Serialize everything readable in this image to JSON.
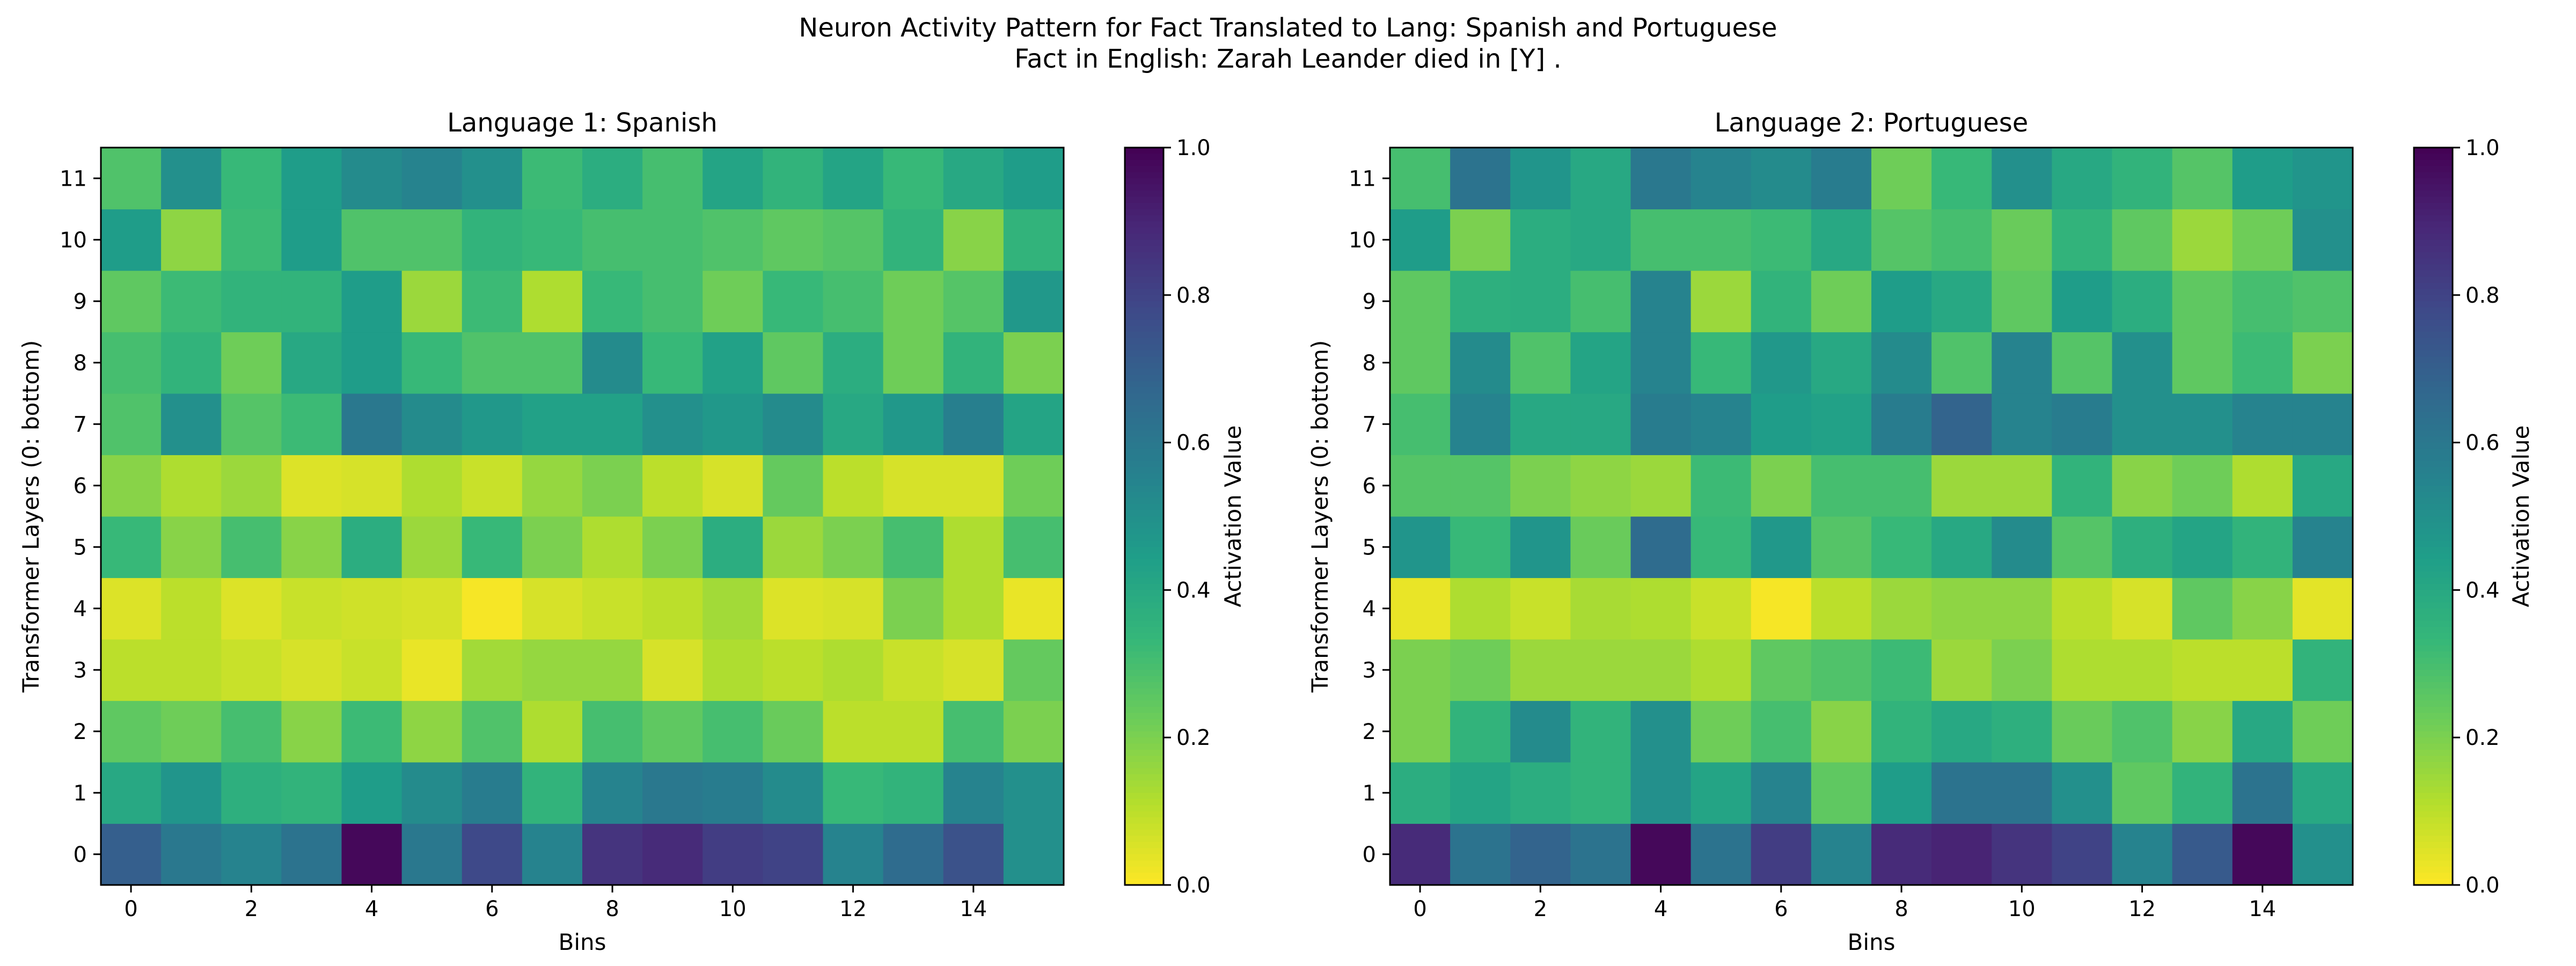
{
  "figure": {
    "title_line1": "Neuron Activity Pattern for Fact Translated to Lang: Spanish and Portuguese",
    "title_line2": "Fact in English: Zarah Leander died in [Y] ."
  },
  "chart_data": [
    {
      "type": "heatmap",
      "title": "Language 1: Spanish",
      "xlabel": "Bins",
      "ylabel": "Transformer Layers (0: bottom)",
      "x_ticks": [
        0,
        2,
        4,
        6,
        8,
        10,
        12,
        14
      ],
      "y_ticks": [
        0,
        1,
        2,
        3,
        4,
        5,
        6,
        7,
        8,
        9,
        10,
        11
      ],
      "n_bins": 16,
      "n_layers": 12,
      "colorbar": {
        "label": "Activation Value",
        "min": 0.0,
        "max": 1.0,
        "ticks": [
          "0.0",
          "0.2",
          "0.4",
          "0.6",
          "0.8",
          "1.0"
        ],
        "colormap": "viridis_r"
      },
      "values": [
        [
          0.7,
          0.6,
          0.55,
          0.62,
          0.98,
          0.6,
          0.78,
          0.55,
          0.85,
          0.88,
          0.82,
          0.8,
          0.55,
          0.65,
          0.75,
          0.5
        ],
        [
          0.4,
          0.48,
          0.37,
          0.35,
          0.45,
          0.52,
          0.58,
          0.35,
          0.55,
          0.6,
          0.58,
          0.52,
          0.33,
          0.35,
          0.55,
          0.5
        ],
        [
          0.25,
          0.22,
          0.3,
          0.18,
          0.32,
          0.17,
          0.28,
          0.12,
          0.3,
          0.25,
          0.3,
          0.23,
          0.1,
          0.1,
          0.3,
          0.2
        ],
        [
          0.1,
          0.1,
          0.08,
          0.06,
          0.08,
          0.03,
          0.14,
          0.16,
          0.16,
          0.06,
          0.12,
          0.1,
          0.12,
          0.08,
          0.06,
          0.24
        ],
        [
          0.05,
          0.1,
          0.05,
          0.08,
          0.07,
          0.06,
          0.01,
          0.06,
          0.08,
          0.1,
          0.14,
          0.05,
          0.06,
          0.2,
          0.12,
          0.03
        ],
        [
          0.33,
          0.18,
          0.3,
          0.18,
          0.38,
          0.15,
          0.33,
          0.2,
          0.12,
          0.2,
          0.38,
          0.15,
          0.2,
          0.3,
          0.12,
          0.3
        ],
        [
          0.18,
          0.12,
          0.15,
          0.05,
          0.06,
          0.12,
          0.08,
          0.16,
          0.2,
          0.1,
          0.06,
          0.24,
          0.1,
          0.06,
          0.06,
          0.22
        ],
        [
          0.28,
          0.5,
          0.27,
          0.32,
          0.6,
          0.52,
          0.47,
          0.43,
          0.43,
          0.5,
          0.47,
          0.52,
          0.4,
          0.47,
          0.57,
          0.42
        ],
        [
          0.3,
          0.35,
          0.22,
          0.4,
          0.45,
          0.33,
          0.28,
          0.28,
          0.52,
          0.33,
          0.43,
          0.25,
          0.38,
          0.22,
          0.35,
          0.2
        ],
        [
          0.25,
          0.32,
          0.35,
          0.35,
          0.45,
          0.15,
          0.32,
          0.12,
          0.33,
          0.3,
          0.22,
          0.33,
          0.3,
          0.22,
          0.27,
          0.47
        ],
        [
          0.45,
          0.17,
          0.32,
          0.45,
          0.28,
          0.28,
          0.35,
          0.33,
          0.3,
          0.3,
          0.28,
          0.25,
          0.27,
          0.35,
          0.18,
          0.35
        ],
        [
          0.28,
          0.5,
          0.33,
          0.45,
          0.52,
          0.55,
          0.5,
          0.32,
          0.38,
          0.3,
          0.42,
          0.35,
          0.42,
          0.33,
          0.4,
          0.45
        ]
      ]
    },
    {
      "type": "heatmap",
      "title": "Language 2: Portuguese",
      "xlabel": "Bins",
      "ylabel": "Transformer Layers (0: bottom)",
      "x_ticks": [
        0,
        2,
        4,
        6,
        8,
        10,
        12,
        14
      ],
      "y_ticks": [
        0,
        1,
        2,
        3,
        4,
        5,
        6,
        7,
        8,
        9,
        10,
        11
      ],
      "n_bins": 16,
      "n_layers": 12,
      "colorbar": {
        "label": "Activation Value",
        "min": 0.0,
        "max": 1.0,
        "ticks": [
          "0.0",
          "0.2",
          "0.4",
          "0.6",
          "0.8",
          "1.0"
        ],
        "colormap": "viridis_r"
      },
      "values": [
        [
          0.88,
          0.62,
          0.68,
          0.62,
          0.98,
          0.62,
          0.82,
          0.55,
          0.88,
          0.9,
          0.85,
          0.8,
          0.55,
          0.72,
          0.98,
          0.5
        ],
        [
          0.38,
          0.42,
          0.38,
          0.35,
          0.5,
          0.42,
          0.55,
          0.25,
          0.45,
          0.62,
          0.62,
          0.5,
          0.25,
          0.35,
          0.62,
          0.4
        ],
        [
          0.2,
          0.35,
          0.52,
          0.35,
          0.5,
          0.22,
          0.3,
          0.18,
          0.35,
          0.4,
          0.37,
          0.23,
          0.28,
          0.18,
          0.4,
          0.22
        ],
        [
          0.2,
          0.22,
          0.15,
          0.15,
          0.15,
          0.12,
          0.25,
          0.28,
          0.32,
          0.15,
          0.2,
          0.12,
          0.12,
          0.1,
          0.1,
          0.35
        ],
        [
          0.03,
          0.12,
          0.08,
          0.13,
          0.12,
          0.08,
          0.01,
          0.1,
          0.15,
          0.17,
          0.17,
          0.1,
          0.06,
          0.25,
          0.18,
          0.04
        ],
        [
          0.48,
          0.33,
          0.48,
          0.23,
          0.65,
          0.33,
          0.47,
          0.27,
          0.33,
          0.4,
          0.52,
          0.27,
          0.37,
          0.42,
          0.35,
          0.55
        ],
        [
          0.27,
          0.27,
          0.2,
          0.17,
          0.15,
          0.32,
          0.2,
          0.3,
          0.3,
          0.15,
          0.15,
          0.35,
          0.18,
          0.22,
          0.12,
          0.4
        ],
        [
          0.3,
          0.55,
          0.4,
          0.4,
          0.58,
          0.55,
          0.45,
          0.43,
          0.58,
          0.68,
          0.55,
          0.58,
          0.5,
          0.5,
          0.55,
          0.55
        ],
        [
          0.25,
          0.52,
          0.28,
          0.42,
          0.55,
          0.33,
          0.47,
          0.4,
          0.52,
          0.28,
          0.55,
          0.27,
          0.5,
          0.25,
          0.32,
          0.2
        ],
        [
          0.25,
          0.37,
          0.38,
          0.3,
          0.55,
          0.15,
          0.35,
          0.22,
          0.45,
          0.4,
          0.25,
          0.45,
          0.38,
          0.25,
          0.3,
          0.28
        ],
        [
          0.45,
          0.2,
          0.38,
          0.4,
          0.3,
          0.3,
          0.32,
          0.4,
          0.27,
          0.3,
          0.23,
          0.35,
          0.25,
          0.15,
          0.22,
          0.5
        ],
        [
          0.3,
          0.62,
          0.48,
          0.4,
          0.6,
          0.55,
          0.52,
          0.58,
          0.22,
          0.33,
          0.5,
          0.4,
          0.35,
          0.27,
          0.45,
          0.48
        ]
      ]
    }
  ]
}
